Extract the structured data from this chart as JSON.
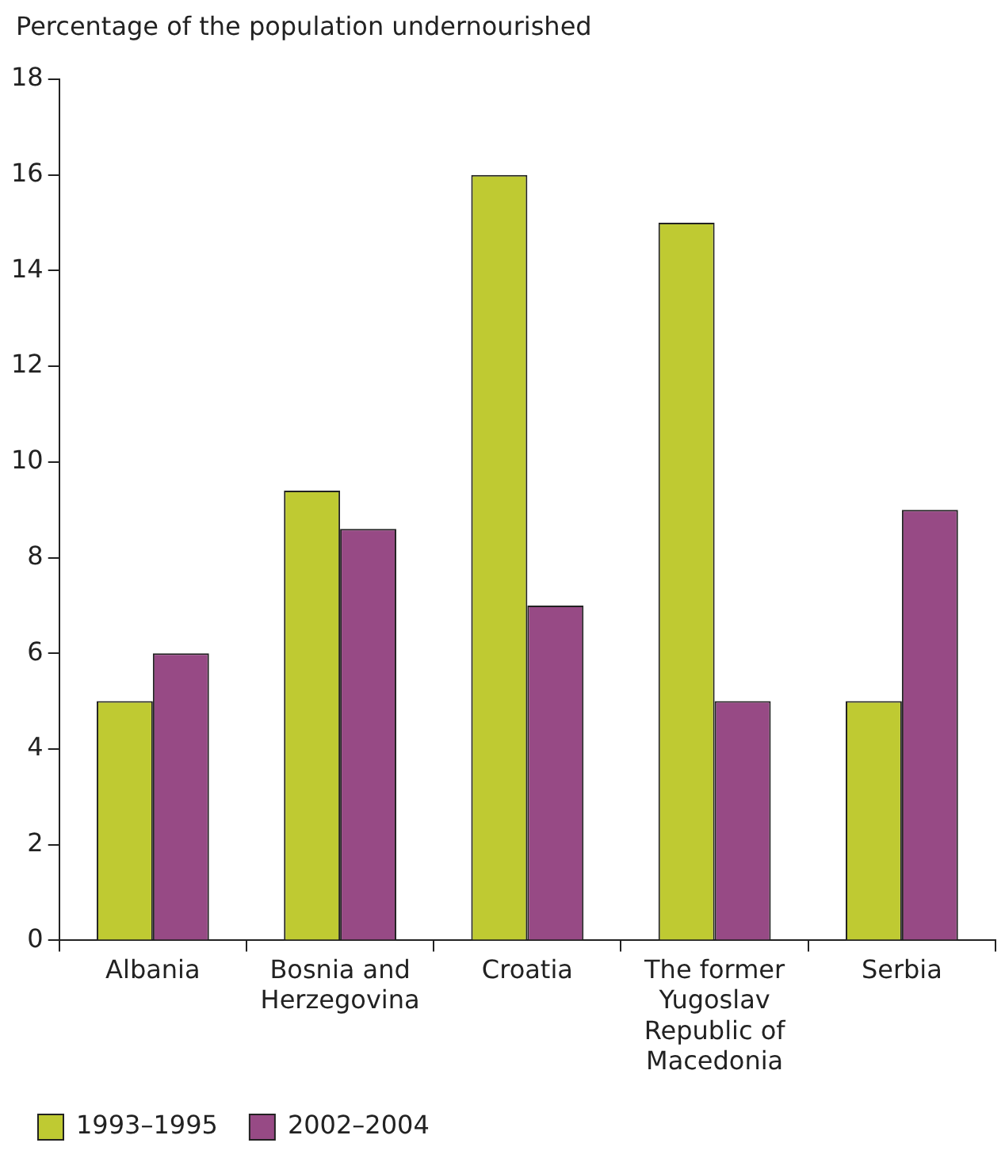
{
  "chart_data": {
    "type": "bar",
    "ylabel": "Percentage of the population undernourished",
    "categories": [
      "Albania",
      "Bosnia and Herzegovina",
      "Croatia",
      "The former Yugoslav Republic of Macedonia",
      "Serbia"
    ],
    "series": [
      {
        "name": "1993–1995",
        "color": "#bfca32",
        "values": [
          5,
          9.4,
          16,
          15,
          5
        ]
      },
      {
        "name": "2002–2004",
        "color": "#974a85",
        "values": [
          6,
          8.6,
          7,
          5,
          9
        ]
      }
    ],
    "ylim": [
      0,
      18
    ],
    "yticks": [
      0,
      2,
      4,
      6,
      8,
      10,
      12,
      14,
      16,
      18
    ],
    "grid": false,
    "legend": "bottom"
  }
}
